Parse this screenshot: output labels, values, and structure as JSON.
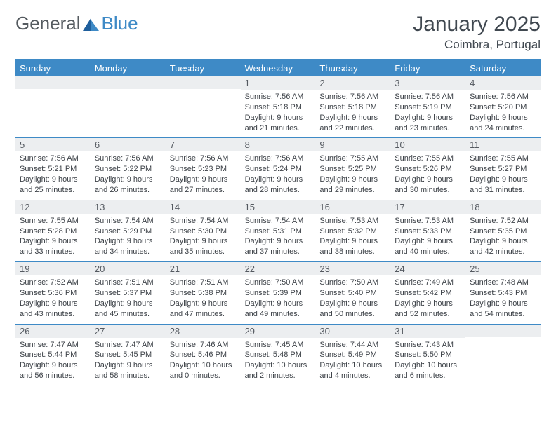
{
  "brand": {
    "part1": "General",
    "part2": "Blue"
  },
  "header": {
    "title": "January 2025",
    "location": "Coimbra, Portugal"
  },
  "colors": {
    "accent": "#3e8ac6",
    "daybar": "#eceef0",
    "text": "#3d4248",
    "logo_gray": "#555b60"
  },
  "dayNames": [
    "Sunday",
    "Monday",
    "Tuesday",
    "Wednesday",
    "Thursday",
    "Friday",
    "Saturday"
  ],
  "weeks": [
    [
      {
        "n": "",
        "sr": "",
        "ss": "",
        "dl": ""
      },
      {
        "n": "",
        "sr": "",
        "ss": "",
        "dl": ""
      },
      {
        "n": "",
        "sr": "",
        "ss": "",
        "dl": ""
      },
      {
        "n": "1",
        "sr": "Sunrise: 7:56 AM",
        "ss": "Sunset: 5:18 PM",
        "dl": "Daylight: 9 hours and 21 minutes."
      },
      {
        "n": "2",
        "sr": "Sunrise: 7:56 AM",
        "ss": "Sunset: 5:18 PM",
        "dl": "Daylight: 9 hours and 22 minutes."
      },
      {
        "n": "3",
        "sr": "Sunrise: 7:56 AM",
        "ss": "Sunset: 5:19 PM",
        "dl": "Daylight: 9 hours and 23 minutes."
      },
      {
        "n": "4",
        "sr": "Sunrise: 7:56 AM",
        "ss": "Sunset: 5:20 PM",
        "dl": "Daylight: 9 hours and 24 minutes."
      }
    ],
    [
      {
        "n": "5",
        "sr": "Sunrise: 7:56 AM",
        "ss": "Sunset: 5:21 PM",
        "dl": "Daylight: 9 hours and 25 minutes."
      },
      {
        "n": "6",
        "sr": "Sunrise: 7:56 AM",
        "ss": "Sunset: 5:22 PM",
        "dl": "Daylight: 9 hours and 26 minutes."
      },
      {
        "n": "7",
        "sr": "Sunrise: 7:56 AM",
        "ss": "Sunset: 5:23 PM",
        "dl": "Daylight: 9 hours and 27 minutes."
      },
      {
        "n": "8",
        "sr": "Sunrise: 7:56 AM",
        "ss": "Sunset: 5:24 PM",
        "dl": "Daylight: 9 hours and 28 minutes."
      },
      {
        "n": "9",
        "sr": "Sunrise: 7:55 AM",
        "ss": "Sunset: 5:25 PM",
        "dl": "Daylight: 9 hours and 29 minutes."
      },
      {
        "n": "10",
        "sr": "Sunrise: 7:55 AM",
        "ss": "Sunset: 5:26 PM",
        "dl": "Daylight: 9 hours and 30 minutes."
      },
      {
        "n": "11",
        "sr": "Sunrise: 7:55 AM",
        "ss": "Sunset: 5:27 PM",
        "dl": "Daylight: 9 hours and 31 minutes."
      }
    ],
    [
      {
        "n": "12",
        "sr": "Sunrise: 7:55 AM",
        "ss": "Sunset: 5:28 PM",
        "dl": "Daylight: 9 hours and 33 minutes."
      },
      {
        "n": "13",
        "sr": "Sunrise: 7:54 AM",
        "ss": "Sunset: 5:29 PM",
        "dl": "Daylight: 9 hours and 34 minutes."
      },
      {
        "n": "14",
        "sr": "Sunrise: 7:54 AM",
        "ss": "Sunset: 5:30 PM",
        "dl": "Daylight: 9 hours and 35 minutes."
      },
      {
        "n": "15",
        "sr": "Sunrise: 7:54 AM",
        "ss": "Sunset: 5:31 PM",
        "dl": "Daylight: 9 hours and 37 minutes."
      },
      {
        "n": "16",
        "sr": "Sunrise: 7:53 AM",
        "ss": "Sunset: 5:32 PM",
        "dl": "Daylight: 9 hours and 38 minutes."
      },
      {
        "n": "17",
        "sr": "Sunrise: 7:53 AM",
        "ss": "Sunset: 5:33 PM",
        "dl": "Daylight: 9 hours and 40 minutes."
      },
      {
        "n": "18",
        "sr": "Sunrise: 7:52 AM",
        "ss": "Sunset: 5:35 PM",
        "dl": "Daylight: 9 hours and 42 minutes."
      }
    ],
    [
      {
        "n": "19",
        "sr": "Sunrise: 7:52 AM",
        "ss": "Sunset: 5:36 PM",
        "dl": "Daylight: 9 hours and 43 minutes."
      },
      {
        "n": "20",
        "sr": "Sunrise: 7:51 AM",
        "ss": "Sunset: 5:37 PM",
        "dl": "Daylight: 9 hours and 45 minutes."
      },
      {
        "n": "21",
        "sr": "Sunrise: 7:51 AM",
        "ss": "Sunset: 5:38 PM",
        "dl": "Daylight: 9 hours and 47 minutes."
      },
      {
        "n": "22",
        "sr": "Sunrise: 7:50 AM",
        "ss": "Sunset: 5:39 PM",
        "dl": "Daylight: 9 hours and 49 minutes."
      },
      {
        "n": "23",
        "sr": "Sunrise: 7:50 AM",
        "ss": "Sunset: 5:40 PM",
        "dl": "Daylight: 9 hours and 50 minutes."
      },
      {
        "n": "24",
        "sr": "Sunrise: 7:49 AM",
        "ss": "Sunset: 5:42 PM",
        "dl": "Daylight: 9 hours and 52 minutes."
      },
      {
        "n": "25",
        "sr": "Sunrise: 7:48 AM",
        "ss": "Sunset: 5:43 PM",
        "dl": "Daylight: 9 hours and 54 minutes."
      }
    ],
    [
      {
        "n": "26",
        "sr": "Sunrise: 7:47 AM",
        "ss": "Sunset: 5:44 PM",
        "dl": "Daylight: 9 hours and 56 minutes."
      },
      {
        "n": "27",
        "sr": "Sunrise: 7:47 AM",
        "ss": "Sunset: 5:45 PM",
        "dl": "Daylight: 9 hours and 58 minutes."
      },
      {
        "n": "28",
        "sr": "Sunrise: 7:46 AM",
        "ss": "Sunset: 5:46 PM",
        "dl": "Daylight: 10 hours and 0 minutes."
      },
      {
        "n": "29",
        "sr": "Sunrise: 7:45 AM",
        "ss": "Sunset: 5:48 PM",
        "dl": "Daylight: 10 hours and 2 minutes."
      },
      {
        "n": "30",
        "sr": "Sunrise: 7:44 AM",
        "ss": "Sunset: 5:49 PM",
        "dl": "Daylight: 10 hours and 4 minutes."
      },
      {
        "n": "31",
        "sr": "Sunrise: 7:43 AM",
        "ss": "Sunset: 5:50 PM",
        "dl": "Daylight: 10 hours and 6 minutes."
      },
      {
        "n": "",
        "sr": "",
        "ss": "",
        "dl": ""
      }
    ]
  ]
}
